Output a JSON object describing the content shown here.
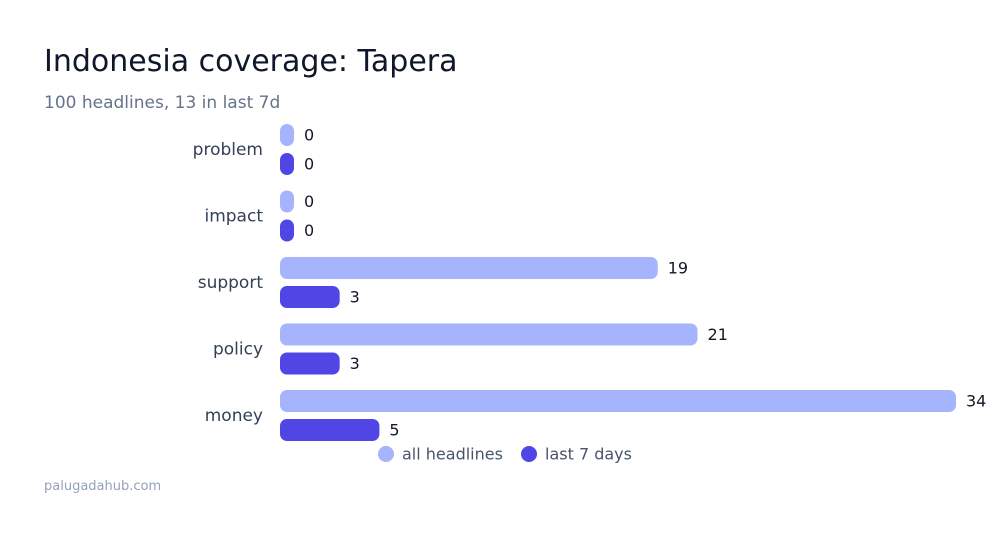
{
  "header": {
    "title": "Indonesia coverage: Tapera",
    "subtitle": "100 headlines, 13 in last 7d"
  },
  "footer": {
    "source": "palugadahub.com"
  },
  "colors": {
    "all": "#a5b4fc",
    "recent": "#4f46e5",
    "label": "#334155",
    "value": "#111827",
    "legend": "#475569"
  },
  "chart_data": {
    "type": "bar",
    "orientation": "horizontal",
    "categories": [
      "problem",
      "impact",
      "support",
      "policy",
      "money"
    ],
    "series": [
      {
        "name": "all headlines",
        "values": [
          0,
          0,
          19,
          21,
          34
        ]
      },
      {
        "name": "last 7 days",
        "values": [
          0,
          0,
          3,
          3,
          5
        ]
      }
    ],
    "xlim": [
      0,
      34
    ],
    "grid": false,
    "legend_position": "bottom"
  }
}
